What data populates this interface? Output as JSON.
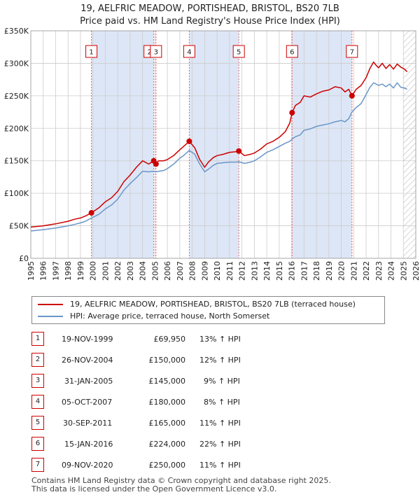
{
  "title_line1": "19, AELFRIC MEADOW, PORTISHEAD, BRISTOL, BS20 7LB",
  "title_line2": "Price paid vs. HM Land Registry's House Price Index (HPI)",
  "colors": {
    "price": "#cc0000",
    "hpi": "#6a96c8",
    "shade": "#dde6f6",
    "grid": "#cccccc",
    "marker": "#cc0000"
  },
  "chart_data": {
    "type": "line",
    "xlim": [
      1995,
      2026
    ],
    "ylim": [
      0,
      350000
    ],
    "x_ticks": [
      1995,
      1996,
      1997,
      1998,
      1999,
      2000,
      2001,
      2002,
      2003,
      2004,
      2005,
      2006,
      2007,
      2008,
      2009,
      2010,
      2011,
      2012,
      2013,
      2014,
      2015,
      2016,
      2017,
      2018,
      2019,
      2020,
      2021,
      2022,
      2023,
      2024,
      2025,
      2026
    ],
    "y_ticks": [
      {
        "value": 0,
        "label": "£0"
      },
      {
        "value": 50000,
        "label": "£50K"
      },
      {
        "value": 100000,
        "label": "£100K"
      },
      {
        "value": 150000,
        "label": "£150K"
      },
      {
        "value": 200000,
        "label": "£200K"
      },
      {
        "value": 250000,
        "label": "£250K"
      },
      {
        "value": 300000,
        "label": "£300K"
      },
      {
        "value": 350000,
        "label": "£350K"
      }
    ],
    "series": [
      {
        "name": "19, AELFRIC MEADOW, PORTISHEAD, BRISTOL, BS20 7LB (terraced house)",
        "color": "#cc0000",
        "x": [
          1995,
          1996,
          1997,
          1998,
          1998.5,
          1999,
          1999.4,
          1999.88,
          2000.5,
          2001,
          2001.5,
          2002,
          2002.5,
          2003,
          2003.5,
          2004,
          2004.5,
          2004.9,
          2005.08,
          2005.3,
          2005.7,
          2006,
          2006.5,
          2007,
          2007.3,
          2007.76,
          2008.2,
          2008.6,
          2009.0,
          2009.3,
          2009.7,
          2010,
          2010.5,
          2011,
          2011.5,
          2011.75,
          2012.2,
          2012.7,
          2013,
          2013.5,
          2014,
          2014.5,
          2015,
          2015.5,
          2015.85,
          2016.04,
          2016.3,
          2016.7,
          2017,
          2017.5,
          2018,
          2018.5,
          2019,
          2019.5,
          2020,
          2020.3,
          2020.6,
          2020.86,
          2021.2,
          2021.6,
          2022,
          2022.3,
          2022.6,
          2022.8,
          2023,
          2023.3,
          2023.6,
          2023.9,
          2024.2,
          2024.5,
          2024.8,
          2025.1,
          2025.3
        ],
        "y": [
          48000,
          50000,
          53000,
          57000,
          60000,
          62000,
          65000,
          69950,
          78000,
          87000,
          93000,
          103000,
          118000,
          128000,
          140000,
          150000,
          145000,
          150000,
          145000,
          150000,
          150000,
          152000,
          158000,
          167000,
          172000,
          180000,
          170000,
          152000,
          140000,
          148000,
          155000,
          158000,
          160000,
          163000,
          164000,
          165000,
          158000,
          160000,
          162000,
          168000,
          176000,
          180000,
          186000,
          195000,
          208000,
          224000,
          235000,
          240000,
          250000,
          248000,
          253000,
          257000,
          259000,
          264000,
          262000,
          256000,
          260000,
          250000,
          260000,
          266000,
          278000,
          292000,
          302000,
          297000,
          293000,
          300000,
          292000,
          298000,
          291000,
          299000,
          294000,
          291000,
          287000
        ]
      },
      {
        "name": "HPI: Average price, terraced house, North Somerset",
        "color": "#6a96c8",
        "x": [
          1995,
          1996,
          1997,
          1998,
          1998.5,
          1999,
          1999.4,
          1999.88,
          2000.5,
          2001,
          2001.5,
          2002,
          2002.5,
          2003,
          2003.5,
          2004,
          2004.5,
          2004.9,
          2005.08,
          2005.3,
          2005.7,
          2006,
          2006.5,
          2007,
          2007.3,
          2007.76,
          2008.2,
          2008.6,
          2009.0,
          2009.3,
          2009.7,
          2010,
          2010.5,
          2011,
          2011.5,
          2011.75,
          2012.2,
          2012.7,
          2013,
          2013.5,
          2014,
          2014.5,
          2015,
          2015.5,
          2015.85,
          2016.04,
          2016.3,
          2016.7,
          2017,
          2017.5,
          2018,
          2018.5,
          2019,
          2019.5,
          2020,
          2020.3,
          2020.6,
          2020.86,
          2021.2,
          2021.6,
          2022,
          2022.3,
          2022.6,
          2022.8,
          2023,
          2023.3,
          2023.6,
          2023.9,
          2024.2,
          2024.5,
          2024.8,
          2025.1,
          2025.3
        ],
        "y": [
          42000,
          44000,
          46500,
          50000,
          52000,
          54500,
          57000,
          61900,
          68000,
          76000,
          82000,
          91000,
          105000,
          115000,
          124000,
          134000,
          133000,
          134000,
          133000,
          134000,
          135000,
          138000,
          145000,
          154000,
          158000,
          166000,
          160000,
          145000,
          133000,
          137000,
          143000,
          146000,
          147000,
          148000,
          148000,
          148500,
          146000,
          148000,
          150000,
          156000,
          163000,
          167000,
          172000,
          177000,
          180000,
          183600,
          187000,
          190000,
          197000,
          199000,
          203000,
          205000,
          207000,
          210000,
          212000,
          210000,
          215000,
          225000,
          232000,
          238000,
          252000,
          263000,
          270000,
          268000,
          266000,
          268000,
          264000,
          268000,
          262000,
          270000,
          263000,
          262000,
          260000
        ]
      }
    ],
    "sales": [
      {
        "num": "1",
        "x": 1999.88,
        "price": 69950
      },
      {
        "num": "2",
        "x": 2004.9,
        "price": 150000
      },
      {
        "num": "3",
        "x": 2005.08,
        "price": 145000
      },
      {
        "num": "4",
        "x": 2007.76,
        "price": 180000
      },
      {
        "num": "5",
        "x": 2011.75,
        "price": 165000
      },
      {
        "num": "6",
        "x": 2016.04,
        "price": 224000
      },
      {
        "num": "7",
        "x": 2020.86,
        "price": 250000
      }
    ],
    "shaded_ranges": [
      [
        1999.88,
        2004.9
      ],
      [
        2007.76,
        2011.75
      ],
      [
        2016.04,
        2020.86
      ]
    ],
    "hatch_from": 2025.0
  },
  "legend": {
    "price_label": "19, AELFRIC MEADOW, PORTISHEAD, BRISTOL, BS20 7LB (terraced house)",
    "hpi_label": "HPI: Average price, terraced house, North Somerset"
  },
  "sales_table": [
    {
      "num": "1",
      "date": "19-NOV-1999",
      "price": "£69,950",
      "hpi": "13% ↑ HPI"
    },
    {
      "num": "2",
      "date": "26-NOV-2004",
      "price": "£150,000",
      "hpi": "12% ↑ HPI"
    },
    {
      "num": "3",
      "date": "31-JAN-2005",
      "price": "£145,000",
      "hpi": "9% ↑ HPI"
    },
    {
      "num": "4",
      "date": "05-OCT-2007",
      "price": "£180,000",
      "hpi": "8% ↑ HPI"
    },
    {
      "num": "5",
      "date": "30-SEP-2011",
      "price": "£165,000",
      "hpi": "11% ↑ HPI"
    },
    {
      "num": "6",
      "date": "15-JAN-2016",
      "price": "£224,000",
      "hpi": "22% ↑ HPI"
    },
    {
      "num": "7",
      "date": "09-NOV-2020",
      "price": "£250,000",
      "hpi": "11% ↑ HPI"
    }
  ],
  "footer_line1": "Contains HM Land Registry data © Crown copyright and database right 2025.",
  "footer_line2": "This data is licensed under the Open Government Licence v3.0."
}
